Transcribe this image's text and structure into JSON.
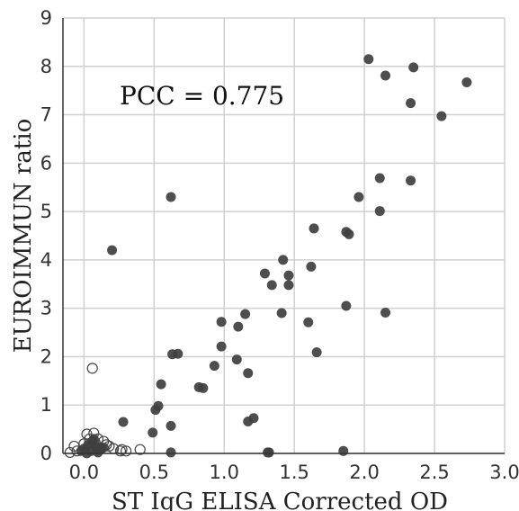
{
  "chart_data": {
    "type": "scatter",
    "title": "",
    "xlabel": "ST IgG ELISA Corrected OD",
    "ylabel": "EUROIMMUN ratio",
    "xlim": [
      -0.15,
      3.0
    ],
    "ylim": [
      0,
      9
    ],
    "xticks": [
      0.0,
      0.5,
      1.0,
      1.5,
      2.0,
      2.5,
      3.0
    ],
    "xtick_labels": [
      "0.0",
      "0.5",
      "1.0",
      "1.5",
      "2.0",
      "2.5",
      "3.0"
    ],
    "yticks": [
      0,
      1,
      2,
      3,
      4,
      5,
      6,
      7,
      8,
      9
    ],
    "ytick_labels": [
      "0",
      "1",
      "2",
      "3",
      "4",
      "5",
      "6",
      "7",
      "8",
      "9"
    ],
    "grid": true,
    "legend": "none",
    "annotations": [
      {
        "text": "PCC = 0.775",
        "x": 0.3,
        "y": 7.5
      }
    ],
    "colors": {
      "filled": "#3f3f3f",
      "open_stroke": "#444444",
      "grid": "#d0d0d0",
      "axis": "#333333"
    },
    "series": [
      {
        "marker": "filled",
        "x": [
          0.2,
          0.62,
          0.28,
          0.55,
          0.51,
          0.62,
          0.49,
          0.53,
          0.62,
          0.63,
          0.67,
          0.82,
          0.85,
          0.93,
          0.98,
          0.98,
          1.1,
          1.09,
          1.15,
          1.17,
          1.17,
          1.21,
          1.29,
          1.31,
          1.32,
          1.34,
          1.41,
          1.42,
          1.46,
          1.46,
          1.6,
          1.62,
          1.64,
          1.66,
          1.85,
          1.87,
          1.87,
          1.89,
          1.96,
          2.03,
          2.11,
          2.11,
          2.15,
          2.15,
          2.33,
          2.33,
          2.35,
          2.55,
          2.73,
          0.0,
          0.05,
          0.08,
          0.1,
          0.12,
          0.03,
          0.06,
          0.09,
          -0.02,
          0.14,
          0.02,
          0.07
        ],
        "y": [
          4.2,
          5.3,
          0.65,
          1.43,
          0.9,
          0.57,
          0.43,
          0.98,
          0.02,
          2.05,
          2.06,
          1.37,
          1.35,
          1.81,
          2.72,
          2.21,
          2.62,
          1.94,
          2.88,
          1.66,
          0.66,
          0.73,
          3.72,
          0.02,
          0.02,
          3.48,
          2.9,
          4.0,
          3.48,
          3.68,
          2.71,
          3.86,
          4.65,
          2.09,
          0.05,
          3.05,
          4.58,
          4.53,
          5.3,
          8.15,
          5.69,
          5.01,
          7.81,
          2.91,
          5.64,
          7.24,
          7.98,
          6.97,
          7.67,
          0.1,
          0.05,
          0.15,
          0.02,
          0.1,
          0.18,
          0.25,
          0.08,
          0.05,
          0.12,
          0.0,
          0.3
        ]
      },
      {
        "marker": "open",
        "x": [
          0.06,
          -0.07,
          0.02,
          0.04,
          0.07,
          0.14,
          0.18,
          0.21,
          0.27,
          0.4,
          0.26,
          0.1,
          -0.05,
          0.0,
          0.12,
          0.16,
          0.3,
          0.05,
          -0.1,
          0.08
        ],
        "y": [
          1.76,
          0.15,
          0.4,
          0.3,
          0.42,
          0.25,
          0.15,
          0.1,
          0.08,
          0.08,
          0.05,
          0.3,
          0.05,
          0.2,
          0.1,
          0.18,
          0.05,
          0.12,
          0.02,
          0.22
        ]
      }
    ]
  }
}
